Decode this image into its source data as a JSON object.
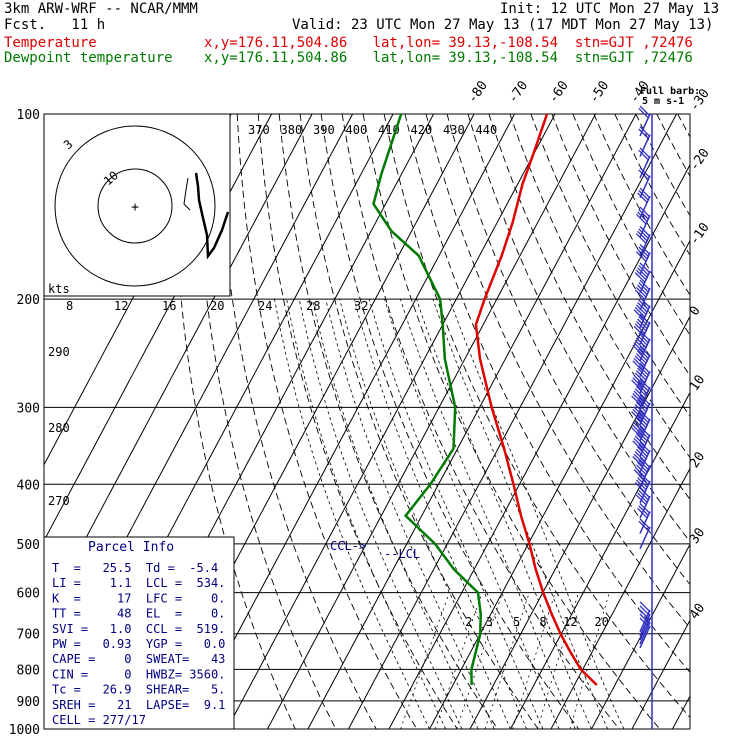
{
  "header": {
    "model": "3km ARW-WRF -- NCAR/MMM",
    "init": "Init: 12 UTC Mon 27 May 13",
    "fcst": "Fcst.   11 h",
    "valid": "Valid: 23 UTC Mon 27 May 13 (17 MDT Mon 27 May 13)",
    "temp_label": "Temperature",
    "temp_loc": "x,y=176.11,504.86   lat,lon= 39.13,-108.54  stn=GJT ,72476",
    "dew_label": "Dewpoint temperature",
    "dew_loc": "x,y=176.11,504.86   lat,lon= 39.13,-108.54  stn=GJT ,72476"
  },
  "barb_legend": {
    "title": "Full barb:",
    "value": "5 m s-1"
  },
  "colors": {
    "temperature": "#e00000",
    "dewpoint": "#007a00",
    "parcel_text": "#000080",
    "barbs": "#3030c0"
  },
  "chart_data": {
    "type": "skew-t log-p",
    "pressure_levels_hPa": [
      100,
      200,
      300,
      400,
      500,
      600,
      700,
      800,
      900,
      1000
    ],
    "isotherm_labels_C": [
      -80,
      -70,
      -60,
      -50,
      -40,
      -30,
      -20,
      -10,
      0,
      10,
      20,
      30,
      40
    ],
    "theta_labels_K": [
      370,
      380,
      390,
      400,
      410,
      420,
      430,
      440,
      290,
      280,
      270
    ],
    "mixing_ratio_labels_gkg": [
      2,
      3,
      5,
      8,
      12,
      20
    ],
    "temperature_profile": {
      "pressure": [
        848,
        800,
        750,
        700,
        650,
        600,
        550,
        500,
        450,
        400,
        350,
        300,
        250,
        220,
        200,
        170,
        150,
        130,
        115,
        100
      ],
      "temp_C": [
        25.5,
        19.5,
        14.7,
        9.8,
        5,
        0.1,
        -4.8,
        -9.7,
        -15.5,
        -21.5,
        -28.5,
        -37,
        -46.3,
        -51.8,
        -53,
        -54.5,
        -56.2,
        -58.8,
        -60.2,
        -62
      ]
    },
    "dewpoint_profile": {
      "pressure": [
        848,
        800,
        700,
        650,
        600,
        550,
        500,
        450,
        400,
        350,
        300,
        250,
        220,
        200,
        170,
        155,
        140,
        125,
        100
      ],
      "dewpoint_C": [
        -5.4,
        -7.5,
        -10,
        -12.5,
        -16,
        -25,
        -33,
        -44,
        -42,
        -41,
        -46,
        -55,
        -60,
        -64,
        -75,
        -85,
        -93,
        -95,
        -98
      ]
    },
    "hodograph": {
      "ring_labels_kts": [
        "10",
        "3"
      ],
      "axis_label": "kts",
      "speed_ticks": [
        "8",
        "12",
        "16",
        "20",
        "24",
        "28",
        "32"
      ]
    },
    "wind_barbs": {
      "pressure": [
        100,
        108,
        117,
        126,
        136,
        146,
        157,
        168,
        180,
        192,
        205,
        218,
        232,
        246,
        262,
        278,
        295,
        313,
        332,
        352,
        373,
        395,
        418,
        443,
        469,
        640,
        650,
        660,
        670,
        680
      ],
      "speed_ms": [
        10,
        10,
        10,
        10,
        15,
        20,
        20,
        20,
        25,
        25,
        30,
        30,
        35,
        35,
        40,
        40,
        40,
        40,
        35,
        35,
        30,
        25,
        20,
        15,
        10,
        5,
        5,
        5,
        5,
        5
      ]
    },
    "annotations": {
      "ccl": "CCL->",
      "lcl": "--LCL"
    },
    "parcel_info": {
      "title": "Parcel Info",
      "rows": [
        "T  =   25.5  Td =  -5.4",
        "LI =    1.1  LCL =  534.",
        "K  =     17  LFC =    0.",
        "TT =     48  EL  =    0.",
        "SVI =   1.0  CCL =  519.",
        "PW =   0.93  YGP =   0.0",
        "CAPE =    0  SWEAT=   43",
        "CIN =     0  HWBZ= 3560.",
        "Tc =   26.9  SHEAR=   5.",
        "SREH =   21  LAPSE=  9.1",
        "CELL = 277/17"
      ]
    }
  }
}
